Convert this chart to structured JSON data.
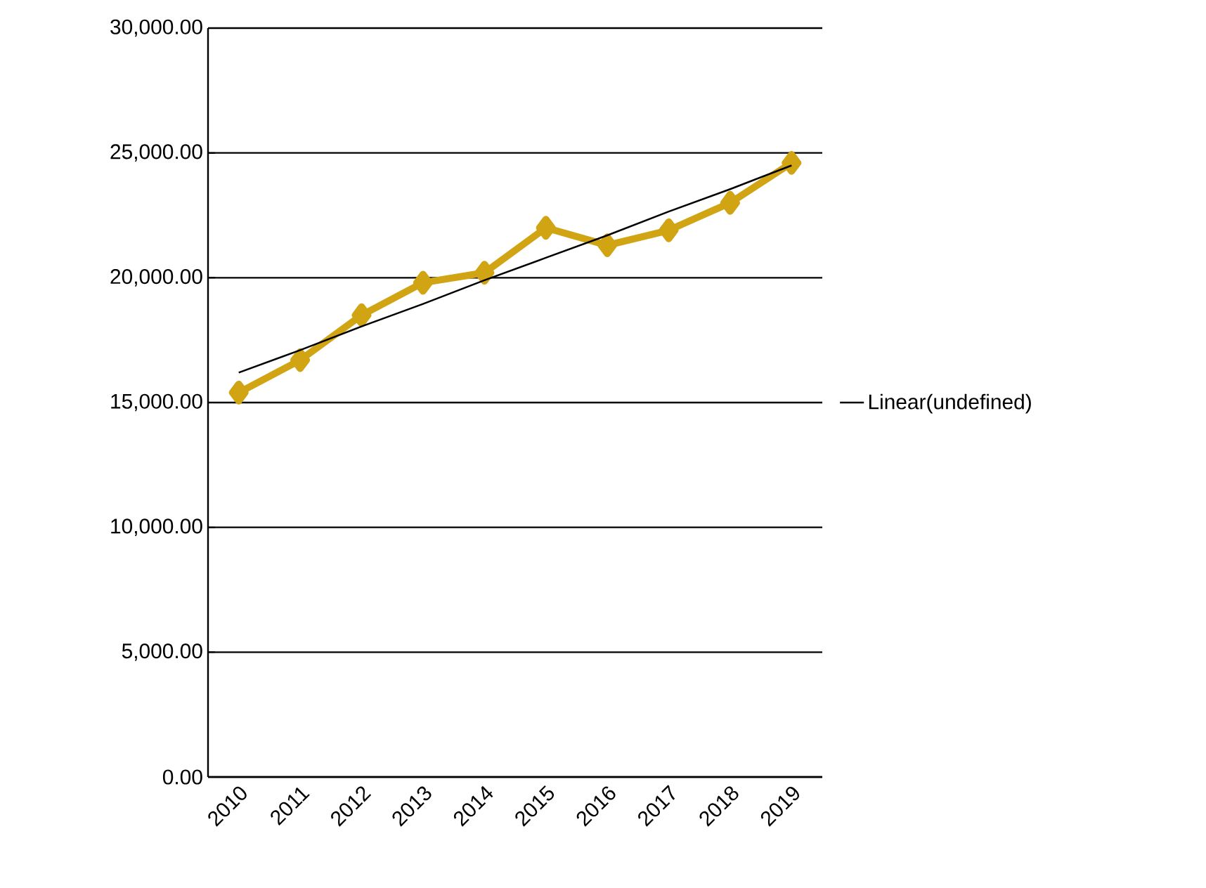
{
  "chart_data": {
    "type": "line",
    "categories": [
      "2010",
      "2011",
      "2012",
      "2013",
      "2014",
      "2015",
      "2016",
      "2017",
      "2018",
      "2019"
    ],
    "series": [
      {
        "color": "#d1a414",
        "marker": "diamond",
        "values": [
          15400,
          16700,
          18500,
          19800,
          20200,
          22000,
          21300,
          21900,
          23000,
          24600
        ]
      },
      {
        "name": "Linear(undefined)",
        "color": "#000000",
        "marker": "none",
        "values": [
          16200,
          17100,
          18050,
          18950,
          19900,
          20800,
          21700,
          22650,
          23550,
          24500
        ]
      }
    ],
    "ylim": [
      0,
      30000
    ],
    "yticks": [
      {
        "value": 0,
        "label": "0.00"
      },
      {
        "value": 5000,
        "label": "5,000.00"
      },
      {
        "value": 10000,
        "label": "10,000.00"
      },
      {
        "value": 15000,
        "label": "15,000.00"
      },
      {
        "value": 20000,
        "label": "20,000.00"
      },
      {
        "value": 25000,
        "label": "25,000.00"
      },
      {
        "value": 30000,
        "label": "30,000.00"
      }
    ],
    "grid": "y",
    "legend": "right"
  }
}
